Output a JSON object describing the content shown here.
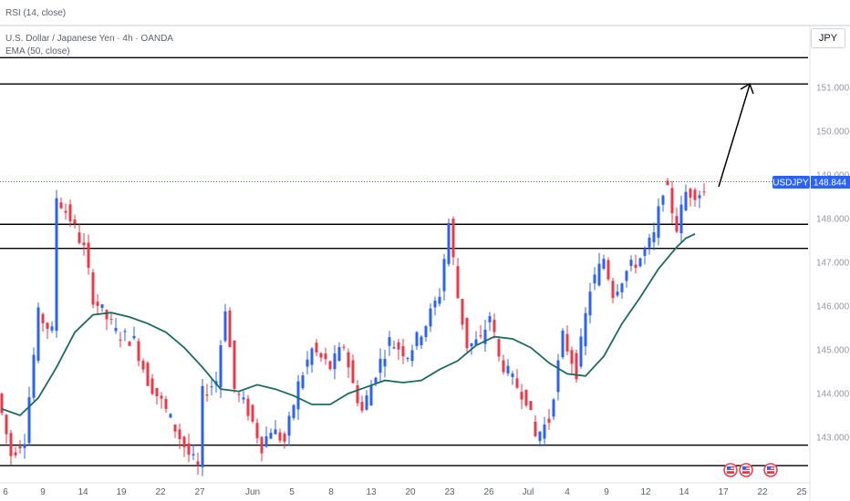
{
  "header": {
    "rsi_label": "RSI (14, close)",
    "symbol_label": "U.S. Dollar / Japanese Yen · 4h · OANDA",
    "ema_label": "EMA (50, close)",
    "currency_button": "JPY"
  },
  "colors": {
    "up": "#2962ff",
    "down": "#f23645",
    "ema": "#1b6b5e",
    "level": "#000000",
    "price_tag": "#2962ff",
    "price_line": "#2962ff"
  },
  "current": {
    "symbol": "USDJPY",
    "price": "148.844",
    "value": 148.844
  },
  "chart_data": {
    "type": "candlestick",
    "y_ticks": [
      "151.000",
      "150.000",
      "149.000",
      "148.000",
      "147.000",
      "146.000",
      "145.000",
      "144.000",
      "143.000"
    ],
    "y_tick_values": [
      151,
      150,
      149,
      148,
      147,
      146,
      145,
      144,
      143
    ],
    "x_ticks": [
      "6",
      "9",
      "14",
      "19",
      "22",
      "27",
      "Jun",
      "5",
      "8",
      "13",
      "20",
      "23",
      "26",
      "Jul",
      "4",
      "9",
      "12",
      "14",
      "17",
      "22",
      "25"
    ],
    "horizontal_levels": [
      151.68,
      151.08,
      147.87,
      147.32,
      142.82,
      142.35
    ],
    "ema_approx": [
      [
        0,
        143.65
      ],
      [
        4,
        143.5
      ],
      [
        8,
        143.9
      ],
      [
        12,
        144.6
      ],
      [
        16,
        145.4
      ],
      [
        20,
        145.8
      ],
      [
        24,
        145.85
      ],
      [
        28,
        145.75
      ],
      [
        32,
        145.6
      ],
      [
        36,
        145.4
      ],
      [
        40,
        145.05
      ],
      [
        44,
        144.6
      ],
      [
        48,
        144.1
      ],
      [
        52,
        144.05
      ],
      [
        56,
        144.2
      ],
      [
        60,
        144.1
      ],
      [
        64,
        143.95
      ],
      [
        68,
        143.75
      ],
      [
        72,
        143.75
      ],
      [
        76,
        144.0
      ],
      [
        80,
        144.15
      ],
      [
        84,
        144.3
      ],
      [
        88,
        144.25
      ],
      [
        92,
        144.3
      ],
      [
        96,
        144.55
      ],
      [
        100,
        144.75
      ],
      [
        104,
        145.1
      ],
      [
        108,
        145.3
      ],
      [
        112,
        145.25
      ],
      [
        116,
        145.05
      ],
      [
        120,
        144.7
      ],
      [
        124,
        144.45
      ],
      [
        128,
        144.4
      ],
      [
        132,
        144.85
      ],
      [
        136,
        145.6
      ],
      [
        140,
        146.2
      ],
      [
        144,
        146.85
      ],
      [
        148,
        147.35
      ],
      [
        150,
        147.55
      ],
      [
        152,
        147.65
      ]
    ]
  },
  "calendar": {
    "event_count": 3
  }
}
